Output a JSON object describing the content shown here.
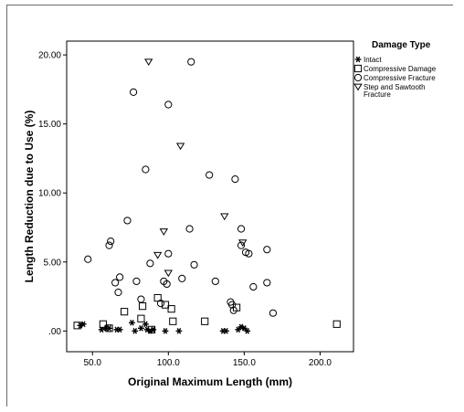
{
  "chart_data": {
    "type": "scatter",
    "title": "",
    "xlabel": "Original Maximum Length (mm)",
    "ylabel": "Length Reduction due to Use (%)",
    "xlim": [
      33,
      222
    ],
    "ylim": [
      -1.5,
      21.0
    ],
    "xticks": [
      50.0,
      100.0,
      150.0,
      200.0
    ],
    "xtick_labels": [
      "50.0",
      "100.0",
      "150.0",
      "200.0"
    ],
    "yticks": [
      0,
      5,
      10,
      15,
      20
    ],
    "ytick_labels": [
      ".00",
      "5.00",
      "10.00",
      "15.00",
      "20.00"
    ],
    "grid": false,
    "legend": {
      "title": "Damage Type",
      "placement": "right",
      "entries": [
        {
          "label": "Intact",
          "marker": "asterisk"
        },
        {
          "label": "Compressive Damage",
          "marker": "square"
        },
        {
          "label": "Compressive Fracture",
          "marker": "circle"
        },
        {
          "label_lines": [
            "Step and Sawtooth",
            "Fracture"
          ],
          "marker": "triangle-down"
        }
      ]
    },
    "series": [
      {
        "name": "Intact",
        "marker": "asterisk",
        "points": [
          [
            42,
            0.4
          ],
          [
            44,
            0.5
          ],
          [
            56,
            0.1
          ],
          [
            59,
            0.2
          ],
          [
            61,
            0.2
          ],
          [
            66,
            0.1
          ],
          [
            68,
            0.1
          ],
          [
            76,
            0.6
          ],
          [
            78,
            0.0
          ],
          [
            82,
            0.2
          ],
          [
            85,
            0.5
          ],
          [
            86,
            0.1
          ],
          [
            88,
            0.0
          ],
          [
            90,
            0.1
          ],
          [
            98,
            0.0
          ],
          [
            107,
            0.0
          ],
          [
            136,
            0.0
          ],
          [
            138,
            0.0
          ],
          [
            146,
            0.1
          ],
          [
            148,
            0.3
          ],
          [
            150,
            0.2
          ],
          [
            152,
            0.0
          ]
        ]
      },
      {
        "name": "Compressive Damage",
        "marker": "square",
        "points": [
          [
            40,
            0.4
          ],
          [
            57,
            0.5
          ],
          [
            61,
            0.2
          ],
          [
            71,
            1.4
          ],
          [
            82,
            0.9
          ],
          [
            83,
            1.8
          ],
          [
            89,
            0.1
          ],
          [
            93,
            2.4
          ],
          [
            98,
            1.9
          ],
          [
            102,
            1.6
          ],
          [
            103,
            0.7
          ],
          [
            124,
            0.7
          ],
          [
            145,
            1.7
          ],
          [
            211,
            0.5
          ]
        ]
      },
      {
        "name": "Compressive Fracture",
        "marker": "circle",
        "points": [
          [
            47,
            5.2
          ],
          [
            61,
            6.2
          ],
          [
            62,
            6.5
          ],
          [
            65,
            3.5
          ],
          [
            67,
            2.8
          ],
          [
            68,
            3.9
          ],
          [
            73,
            8.0
          ],
          [
            77,
            17.3
          ],
          [
            79,
            3.6
          ],
          [
            82,
            2.3
          ],
          [
            85,
            11.7
          ],
          [
            88,
            4.9
          ],
          [
            95,
            2.0
          ],
          [
            97,
            3.6
          ],
          [
            99,
            3.4
          ],
          [
            100,
            16.4
          ],
          [
            100,
            5.6
          ],
          [
            109,
            3.8
          ],
          [
            115,
            19.5
          ],
          [
            114,
            7.4
          ],
          [
            117,
            4.8
          ],
          [
            127,
            11.3
          ],
          [
            131,
            3.6
          ],
          [
            141,
            2.1
          ],
          [
            142,
            1.9
          ],
          [
            143,
            1.5
          ],
          [
            144,
            11.0
          ],
          [
            148,
            7.4
          ],
          [
            148,
            6.2
          ],
          [
            151,
            5.7
          ],
          [
            153,
            5.6
          ],
          [
            156,
            3.2
          ],
          [
            165,
            3.5
          ],
          [
            165,
            5.9
          ],
          [
            169,
            1.3
          ]
        ]
      },
      {
        "name": "Step and Sawtooth Fracture",
        "marker": "triangle-down",
        "points": [
          [
            87,
            19.5
          ],
          [
            93,
            5.5
          ],
          [
            97,
            7.2
          ],
          [
            100,
            4.2
          ],
          [
            108,
            13.4
          ],
          [
            137,
            8.3
          ],
          [
            149,
            6.4
          ]
        ]
      }
    ]
  }
}
